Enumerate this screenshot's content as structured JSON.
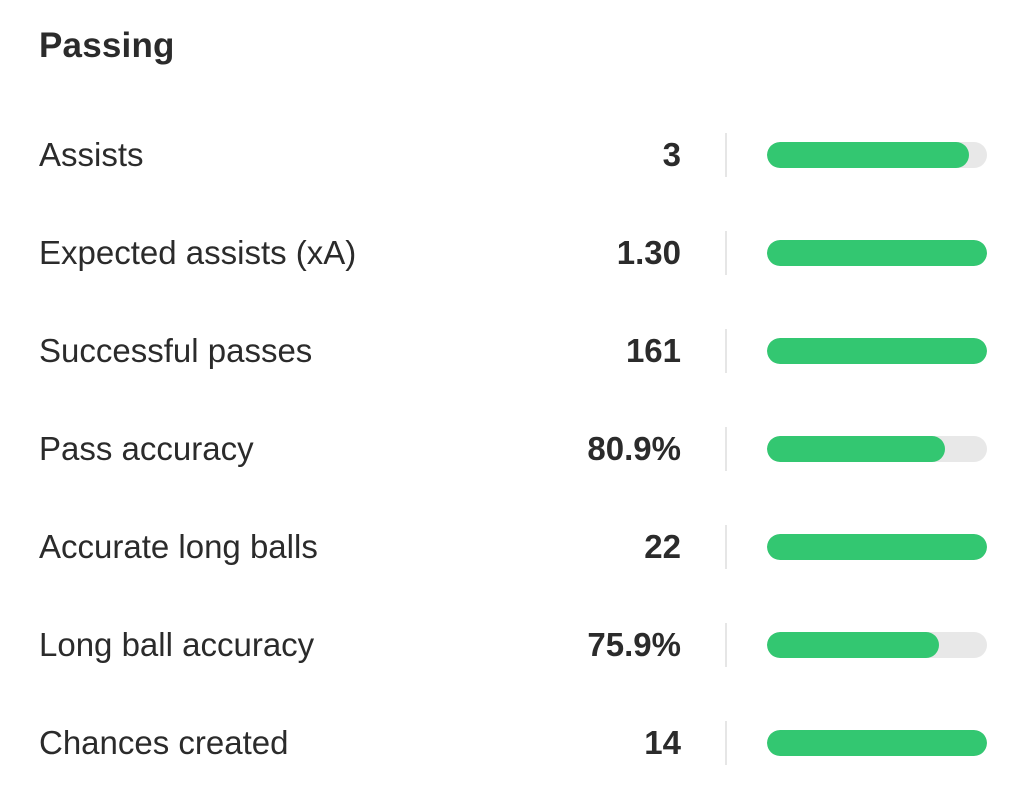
{
  "section": {
    "title": "Passing"
  },
  "colors": {
    "bar_fill": "#33c771",
    "bar_track": "#e8e8e8",
    "text": "#2b2b2b"
  },
  "stats": [
    {
      "label": "Assists",
      "value": "3",
      "bar_fraction": 0.92
    },
    {
      "label": "Expected assists (xA)",
      "value": "1.30",
      "bar_fraction": 1.0
    },
    {
      "label": "Successful passes",
      "value": "161",
      "bar_fraction": 1.0
    },
    {
      "label": "Pass accuracy",
      "value": "80.9%",
      "bar_fraction": 0.81
    },
    {
      "label": "Accurate long balls",
      "value": "22",
      "bar_fraction": 1.0
    },
    {
      "label": "Long ball accuracy",
      "value": "75.9%",
      "bar_fraction": 0.78
    },
    {
      "label": "Chances created",
      "value": "14",
      "bar_fraction": 1.0
    }
  ]
}
